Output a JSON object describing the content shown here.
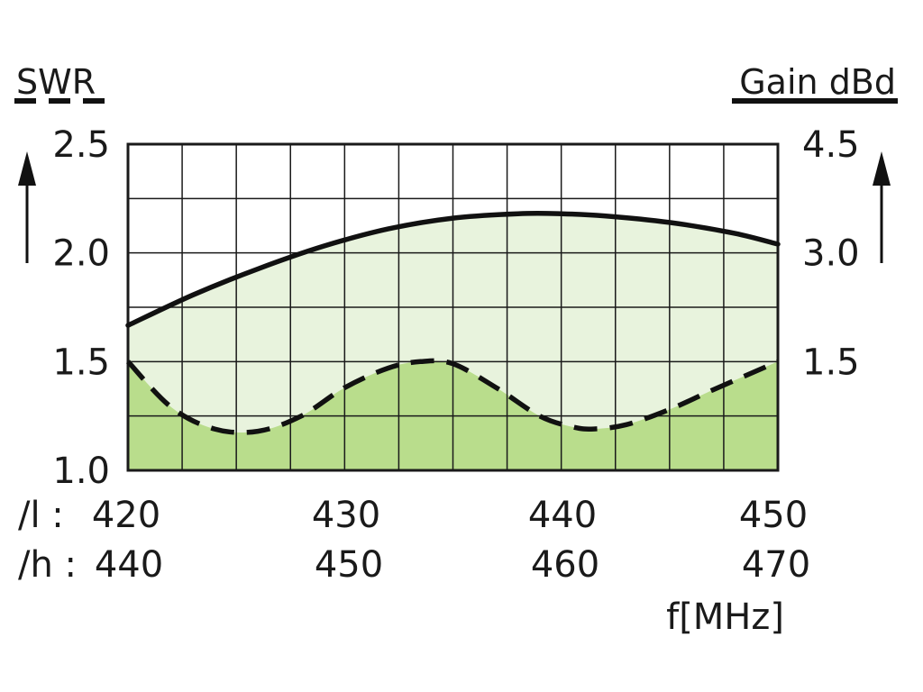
{
  "chart_data": {
    "type": "line",
    "title": "",
    "left_axis_title": "SWR",
    "right_axis_title": "Gain dBd",
    "xlabel": "f[MHz]",
    "x_rows": [
      {
        "prefix": "/l :",
        "ticks": [
          "420",
          "430",
          "440",
          "450"
        ]
      },
      {
        "prefix": "/h :",
        "ticks": [
          "440",
          "450",
          "460",
          "470"
        ]
      }
    ],
    "left_ticks": [
      "1.0",
      "1.5",
      "2.0",
      "2.5"
    ],
    "right_ticks": [
      "1.5",
      "3.0",
      "4.5"
    ],
    "xlim": [
      420,
      450
    ],
    "left_ylim": [
      1.0,
      2.5
    ],
    "grid": true,
    "series": [
      {
        "name": "SWR",
        "axis": "left",
        "style": "dashed",
        "x": [
          420,
          422,
          424,
          426,
          428,
          430,
          432,
          433.5,
          435,
          437,
          439,
          440.5,
          441.5,
          443,
          445,
          447,
          450
        ],
        "values": [
          1.5,
          1.29,
          1.19,
          1.18,
          1.25,
          1.38,
          1.47,
          1.5,
          1.49,
          1.38,
          1.25,
          1.2,
          1.19,
          1.21,
          1.28,
          1.37,
          1.5
        ]
      },
      {
        "name": "Gain dBd",
        "axis": "right",
        "style": "solid",
        "x": [
          420,
          423,
          426,
          429,
          432,
          435,
          438,
          440,
          442,
          445,
          448,
          450
        ],
        "values": [
          2.0,
          2.42,
          2.78,
          3.09,
          3.33,
          3.48,
          3.54,
          3.54,
          3.51,
          3.42,
          3.27,
          3.12
        ]
      }
    ],
    "colors": {
      "upper_fill": "#e8f3dd",
      "lower_fill": "#b9dd8c",
      "grid": "#1a1a1a",
      "line": "#111111"
    }
  }
}
